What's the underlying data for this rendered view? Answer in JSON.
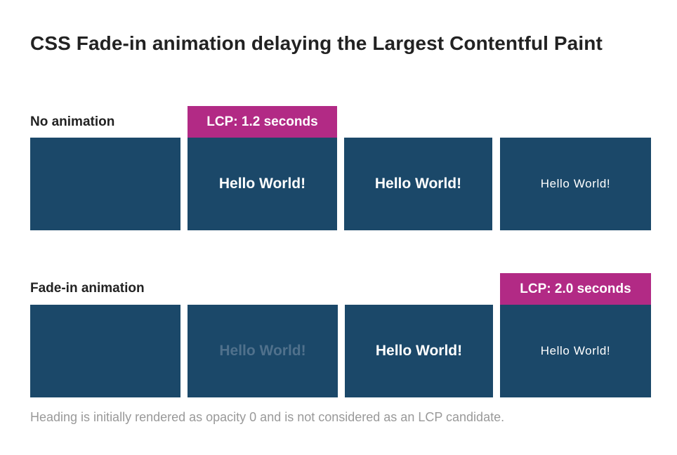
{
  "title": "CSS Fade-in animation delaying the Largest Contentful Paint",
  "colors": {
    "frame_background": "#1b4869",
    "badge_background": "#b22a85",
    "faded_text": "#50718c",
    "footnote_text": "#999999"
  },
  "rows": [
    {
      "label": "No animation",
      "lcp_label": "LCP: 1.2 seconds",
      "lcp_frame_index": 1,
      "frames": [
        {
          "text": "",
          "opacity": 1
        },
        {
          "text": "Hello World!",
          "opacity": 1
        },
        {
          "text": "Hello World!",
          "opacity": 1
        },
        {
          "text": "Hello World!",
          "opacity": 1
        }
      ]
    },
    {
      "label": "Fade-in animation",
      "lcp_label": "LCP: 2.0 seconds",
      "lcp_frame_index": 3,
      "frames": [
        {
          "text": "",
          "opacity": 0
        },
        {
          "text": "Hello World!",
          "opacity": 0.3
        },
        {
          "text": "Hello World!",
          "opacity": 1
        },
        {
          "text": "Hello World!",
          "opacity": 1
        }
      ]
    }
  ],
  "footnote": "Heading is initially rendered as opacity 0 and is not considered as an LCP candidate."
}
